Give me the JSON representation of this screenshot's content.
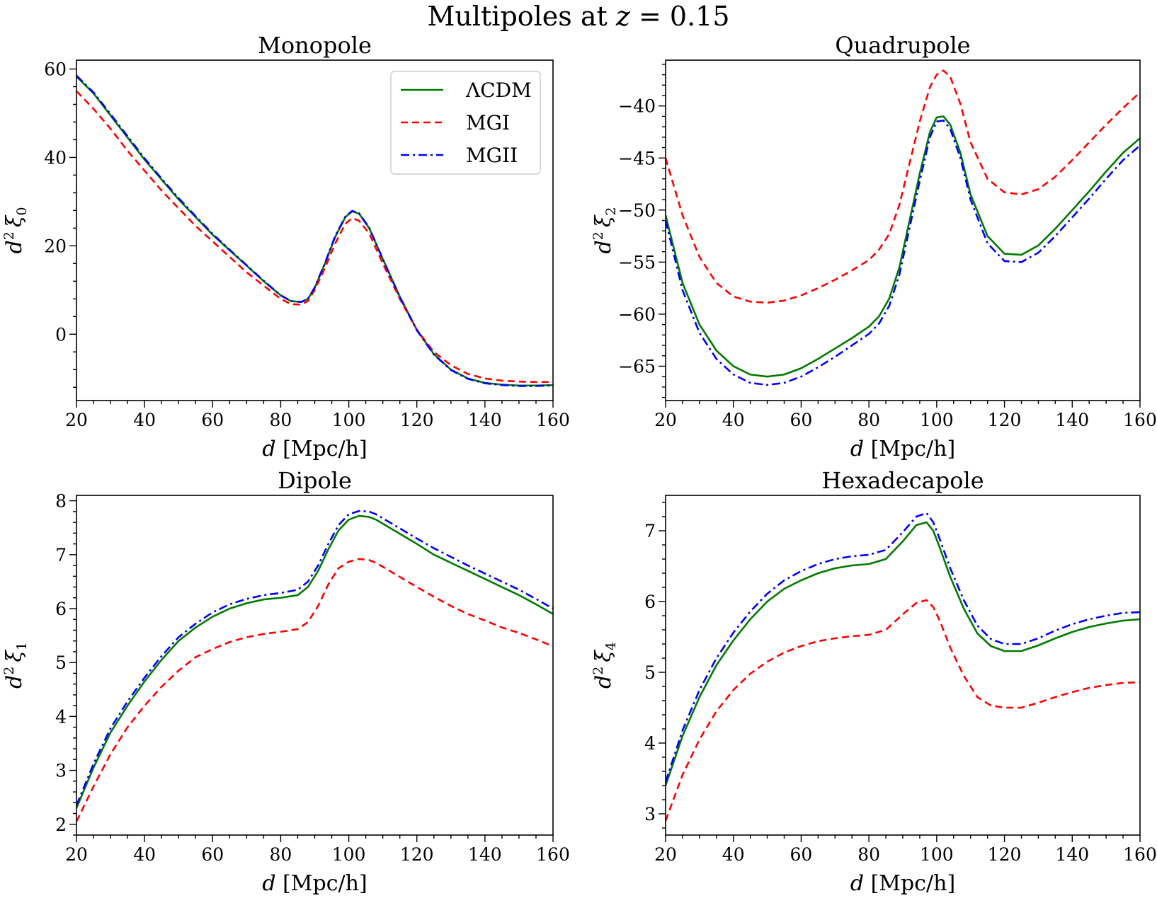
{
  "figure": {
    "title_prefix": "Multipoles at ",
    "title_var": "z",
    "title_suffix": " = 0.15"
  },
  "legend": {
    "placement": "top-right (Monopole panel)",
    "entries": [
      {
        "label": "ΛCDM",
        "color": "#007a00",
        "style": "solid"
      },
      {
        "label": "MGI",
        "color": "#ff0000",
        "style": "dashed"
      },
      {
        "label": "MGII",
        "color": "#0000ff",
        "style": "dash-dot"
      }
    ]
  },
  "chart_data": [
    {
      "type": "line",
      "title": "Monopole",
      "xlabel_var": "d",
      "xlabel_unit": "[Mpc/h]",
      "ylabel_base": "d",
      "ylabel_sup": "2",
      "ylabel_xi": "ξ",
      "ylabel_sub": "0",
      "xlim": [
        20,
        160
      ],
      "ylim": [
        -15,
        62
      ],
      "xticks": [
        20,
        40,
        60,
        80,
        100,
        120,
        140,
        160
      ],
      "yticks": [
        0,
        20,
        40,
        60
      ],
      "ytick_labels": [
        "0",
        "20",
        "40",
        "60"
      ],
      "series": [
        {
          "name": "ΛCDM",
          "color": "#007a00",
          "style": "solid",
          "x": [
            20,
            25,
            30,
            35,
            40,
            45,
            50,
            55,
            60,
            65,
            70,
            75,
            80,
            83,
            86,
            88,
            90,
            93,
            96,
            99,
            101,
            103,
            106,
            110,
            115,
            120,
            125,
            130,
            135,
            140,
            145,
            150,
            155,
            160
          ],
          "y": [
            58.3,
            54.5,
            49.5,
            44.5,
            39.5,
            35,
            30.5,
            26.5,
            22.5,
            19,
            15.5,
            12,
            8.8,
            7.5,
            7.3,
            8,
            10.5,
            16,
            22,
            26.5,
            27.8,
            27.3,
            24,
            17,
            8.5,
            1,
            -4.5,
            -8,
            -10,
            -11,
            -11.4,
            -11.6,
            -11.6,
            -11.5
          ]
        },
        {
          "name": "MGI",
          "color": "#ff0000",
          "style": "dashed",
          "x": [
            20,
            25,
            30,
            35,
            40,
            45,
            50,
            55,
            60,
            65,
            70,
            75,
            80,
            83,
            86,
            88,
            90,
            93,
            96,
            99,
            101,
            103,
            106,
            110,
            115,
            120,
            125,
            130,
            135,
            140,
            145,
            150,
            155,
            160
          ],
          "y": [
            55,
            51,
            46.5,
            41.5,
            37,
            32.5,
            28.5,
            24.5,
            21,
            17.5,
            14,
            11,
            8,
            6.8,
            6.7,
            7.5,
            10,
            15,
            20.5,
            25,
            26.3,
            25.7,
            22.8,
            16,
            8,
            1,
            -4,
            -7,
            -9,
            -10,
            -10.5,
            -10.7,
            -10.8,
            -10.8
          ]
        },
        {
          "name": "MGII",
          "color": "#0000ff",
          "style": "dash-dot",
          "x": [
            20,
            25,
            30,
            35,
            40,
            45,
            50,
            55,
            60,
            65,
            70,
            75,
            80,
            83,
            86,
            88,
            90,
            93,
            96,
            99,
            101,
            103,
            106,
            110,
            115,
            120,
            125,
            130,
            135,
            140,
            145,
            150,
            155,
            160
          ],
          "y": [
            58.5,
            54.7,
            49.8,
            44.8,
            39.8,
            35.2,
            30.8,
            26.7,
            22.7,
            19.1,
            15.6,
            12.1,
            8.8,
            7.5,
            7.3,
            8,
            10.6,
            16.1,
            22.2,
            26.6,
            27.9,
            27.4,
            24.1,
            17,
            8.4,
            0.9,
            -4.6,
            -8.1,
            -10.1,
            -11.1,
            -11.5,
            -11.7,
            -11.7,
            -11.6
          ]
        }
      ]
    },
    {
      "type": "line",
      "title": "Quadrupole",
      "xlabel_var": "d",
      "xlabel_unit": "[Mpc/h]",
      "ylabel_base": "d",
      "ylabel_sup": "2",
      "ylabel_xi": "ξ",
      "ylabel_sub": "2",
      "xlim": [
        20,
        160
      ],
      "ylim": [
        -68.3,
        -35.6
      ],
      "xticks": [
        20,
        40,
        60,
        80,
        100,
        120,
        140,
        160
      ],
      "yticks": [
        -65,
        -60,
        -55,
        -50,
        -45,
        -40
      ],
      "ytick_labels": [
        "−65",
        "−60",
        "−55",
        "−50",
        "−45",
        "−40"
      ],
      "series": [
        {
          "name": "ΛCDM",
          "color": "#007a00",
          "style": "solid",
          "x": [
            20,
            25,
            30,
            35,
            40,
            45,
            50,
            55,
            60,
            65,
            70,
            75,
            80,
            83,
            86,
            89,
            92,
            95,
            98,
            100,
            102,
            104,
            107,
            110,
            115,
            120,
            125,
            130,
            135,
            140,
            145,
            150,
            155,
            160
          ],
          "y": [
            -50.5,
            -57,
            -61,
            -63.5,
            -65,
            -65.8,
            -66,
            -65.8,
            -65.2,
            -64.3,
            -63.3,
            -62.3,
            -61.2,
            -60.2,
            -58.5,
            -55.5,
            -51,
            -46.5,
            -42.5,
            -41.1,
            -41,
            -41.8,
            -44.5,
            -48.5,
            -52.5,
            -54.2,
            -54.3,
            -53.4,
            -51.8,
            -50,
            -48.2,
            -46.3,
            -44.5,
            -43.1
          ]
        },
        {
          "name": "MGI",
          "color": "#ff0000",
          "style": "dashed",
          "x": [
            20,
            25,
            30,
            35,
            40,
            45,
            50,
            55,
            60,
            65,
            70,
            75,
            80,
            83,
            86,
            89,
            92,
            95,
            98,
            100,
            102,
            104,
            107,
            110,
            115,
            120,
            125,
            130,
            135,
            140,
            145,
            150,
            155,
            160
          ],
          "y": [
            -45,
            -50.5,
            -54.5,
            -57,
            -58.3,
            -58.8,
            -58.9,
            -58.7,
            -58.2,
            -57.5,
            -56.7,
            -55.8,
            -54.8,
            -53.8,
            -52.3,
            -49.5,
            -45.5,
            -41.5,
            -38.2,
            -37,
            -36.6,
            -37.2,
            -39.8,
            -43.5,
            -47,
            -48.3,
            -48.5,
            -48,
            -46.8,
            -45.2,
            -43.5,
            -41.8,
            -40.2,
            -38.7
          ]
        },
        {
          "name": "MGII",
          "color": "#0000ff",
          "style": "dash-dot",
          "x": [
            20,
            25,
            30,
            35,
            40,
            45,
            50,
            55,
            60,
            65,
            70,
            75,
            80,
            83,
            86,
            89,
            92,
            95,
            98,
            100,
            102,
            104,
            107,
            110,
            115,
            120,
            125,
            130,
            135,
            140,
            145,
            150,
            155,
            160
          ],
          "y": [
            -51,
            -57.7,
            -61.8,
            -64.3,
            -65.8,
            -66.6,
            -66.8,
            -66.6,
            -66,
            -65.1,
            -64.1,
            -63,
            -61.9,
            -60.9,
            -59.2,
            -56.2,
            -51.7,
            -47.2,
            -43,
            -41.5,
            -41.4,
            -42.2,
            -45,
            -49,
            -53.2,
            -54.9,
            -55,
            -54.1,
            -52.5,
            -50.7,
            -48.9,
            -47,
            -45.2,
            -43.8
          ]
        }
      ]
    },
    {
      "type": "line",
      "title": "Dipole",
      "xlabel_var": "d",
      "xlabel_unit": "[Mpc/h]",
      "ylabel_base": "d",
      "ylabel_sup": "2",
      "ylabel_xi": "ξ",
      "ylabel_sub": "1",
      "xlim": [
        20,
        160
      ],
      "ylim": [
        1.8,
        8.1
      ],
      "xticks": [
        20,
        40,
        60,
        80,
        100,
        120,
        140,
        160
      ],
      "yticks": [
        2,
        3,
        4,
        5,
        6,
        7,
        8
      ],
      "ytick_labels": [
        "2",
        "3",
        "4",
        "5",
        "6",
        "7",
        "8"
      ],
      "series": [
        {
          "name": "ΛCDM",
          "color": "#007a00",
          "style": "solid",
          "x": [
            20,
            25,
            30,
            35,
            40,
            45,
            50,
            55,
            60,
            65,
            70,
            75,
            80,
            85,
            88,
            91,
            94,
            97,
            100,
            103,
            106,
            108,
            112,
            116,
            120,
            125,
            130,
            135,
            140,
            145,
            150,
            155,
            160
          ],
          "y": [
            2.3,
            3.05,
            3.7,
            4.2,
            4.65,
            5.05,
            5.4,
            5.65,
            5.85,
            6.0,
            6.1,
            6.17,
            6.2,
            6.25,
            6.4,
            6.7,
            7.1,
            7.45,
            7.65,
            7.72,
            7.7,
            7.65,
            7.5,
            7.35,
            7.2,
            7.0,
            6.85,
            6.7,
            6.55,
            6.4,
            6.25,
            6.08,
            5.9
          ]
        },
        {
          "name": "MGI",
          "color": "#ff0000",
          "style": "dashed",
          "x": [
            20,
            25,
            30,
            35,
            40,
            45,
            50,
            55,
            60,
            65,
            70,
            75,
            80,
            85,
            88,
            91,
            94,
            97,
            100,
            103,
            106,
            108,
            112,
            116,
            120,
            125,
            130,
            135,
            140,
            145,
            150,
            155,
            160
          ],
          "y": [
            2.05,
            2.7,
            3.3,
            3.8,
            4.2,
            4.55,
            4.85,
            5.1,
            5.25,
            5.38,
            5.47,
            5.53,
            5.57,
            5.62,
            5.75,
            6.05,
            6.45,
            6.75,
            6.87,
            6.92,
            6.9,
            6.85,
            6.7,
            6.55,
            6.4,
            6.22,
            6.05,
            5.9,
            5.78,
            5.65,
            5.55,
            5.43,
            5.3
          ]
        },
        {
          "name": "MGII",
          "color": "#0000ff",
          "style": "dash-dot",
          "x": [
            20,
            25,
            30,
            35,
            40,
            45,
            50,
            55,
            60,
            65,
            70,
            75,
            80,
            85,
            88,
            91,
            94,
            97,
            100,
            103,
            106,
            108,
            112,
            116,
            120,
            125,
            130,
            135,
            140,
            145,
            150,
            155,
            160
          ],
          "y": [
            2.35,
            3.12,
            3.78,
            4.28,
            4.72,
            5.12,
            5.47,
            5.72,
            5.93,
            6.08,
            6.18,
            6.25,
            6.29,
            6.35,
            6.5,
            6.8,
            7.2,
            7.55,
            7.75,
            7.81,
            7.8,
            7.75,
            7.6,
            7.45,
            7.3,
            7.12,
            6.96,
            6.8,
            6.65,
            6.5,
            6.35,
            6.18,
            6.0
          ]
        }
      ]
    },
    {
      "type": "line",
      "title": "Hexadecapole",
      "xlabel_var": "d",
      "xlabel_unit": "[Mpc/h]",
      "ylabel_base": "d",
      "ylabel_sup": "2",
      "ylabel_xi": "ξ",
      "ylabel_sub": "4",
      "xlim": [
        20,
        160
      ],
      "ylim": [
        2.7,
        7.5
      ],
      "xticks": [
        20,
        40,
        60,
        80,
        100,
        120,
        140,
        160
      ],
      "yticks": [
        3,
        4,
        5,
        6,
        7
      ],
      "ytick_labels": [
        "3",
        "4",
        "5",
        "6",
        "7"
      ],
      "series": [
        {
          "name": "ΛCDM",
          "color": "#007a00",
          "style": "solid",
          "x": [
            20,
            25,
            30,
            35,
            40,
            45,
            50,
            55,
            60,
            65,
            70,
            75,
            80,
            85,
            90,
            94,
            97,
            99,
            101,
            104,
            108,
            112,
            116,
            120,
            125,
            130,
            135,
            140,
            145,
            150,
            155,
            160
          ],
          "y": [
            3.4,
            4.1,
            4.65,
            5.1,
            5.45,
            5.75,
            6.0,
            6.18,
            6.3,
            6.4,
            6.47,
            6.51,
            6.53,
            6.6,
            6.85,
            7.08,
            7.12,
            7.0,
            6.75,
            6.35,
            5.9,
            5.55,
            5.37,
            5.3,
            5.3,
            5.38,
            5.48,
            5.57,
            5.64,
            5.69,
            5.73,
            5.75
          ]
        },
        {
          "name": "MGI",
          "color": "#ff0000",
          "style": "dashed",
          "x": [
            20,
            25,
            30,
            35,
            40,
            45,
            50,
            55,
            60,
            65,
            70,
            75,
            80,
            85,
            90,
            94,
            97,
            99,
            101,
            104,
            108,
            112,
            116,
            120,
            125,
            130,
            135,
            140,
            145,
            150,
            155,
            160
          ],
          "y": [
            2.9,
            3.55,
            4.05,
            4.45,
            4.75,
            4.98,
            5.15,
            5.28,
            5.37,
            5.44,
            5.48,
            5.51,
            5.53,
            5.6,
            5.82,
            5.98,
            6.02,
            5.92,
            5.72,
            5.35,
            4.95,
            4.65,
            4.53,
            4.5,
            4.5,
            4.57,
            4.65,
            4.72,
            4.78,
            4.82,
            4.85,
            4.86
          ]
        },
        {
          "name": "MGII",
          "color": "#0000ff",
          "style": "dash-dot",
          "x": [
            20,
            25,
            30,
            35,
            40,
            45,
            50,
            55,
            60,
            65,
            70,
            75,
            80,
            85,
            90,
            94,
            97,
            99,
            101,
            104,
            108,
            112,
            116,
            120,
            125,
            130,
            135,
            140,
            145,
            150,
            155,
            160
          ],
          "y": [
            3.45,
            4.18,
            4.75,
            5.2,
            5.56,
            5.86,
            6.11,
            6.3,
            6.43,
            6.53,
            6.6,
            6.64,
            6.66,
            6.73,
            6.98,
            7.2,
            7.25,
            7.12,
            6.87,
            6.47,
            6.02,
            5.66,
            5.47,
            5.4,
            5.4,
            5.48,
            5.59,
            5.68,
            5.75,
            5.8,
            5.84,
            5.85
          ]
        }
      ]
    }
  ]
}
